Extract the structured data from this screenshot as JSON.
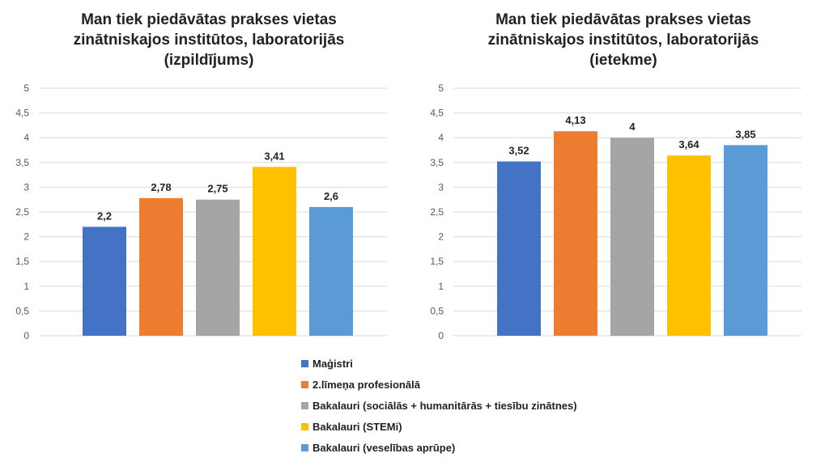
{
  "legend": [
    {
      "label": "Maģistri",
      "color": "#4472C4"
    },
    {
      "label": "2.līmeņa profesionālā",
      "color": "#ED7D31"
    },
    {
      "label": "Bakalauri (sociālās + humanitārās + tiesību zinātnes)",
      "color": "#A5A5A5"
    },
    {
      "label": "Bakalauri (STEMi)",
      "color": "#FFC000"
    },
    {
      "label": "Bakalauri (veselības aprūpe)",
      "color": "#5B9BD5"
    }
  ],
  "chart_data": [
    {
      "type": "bar",
      "title_lines": [
        "Man tiek piedāvātas prakses vietas",
        "zinātniskajos institūtos, laboratorijās",
        "(izpildījums)"
      ],
      "series": [
        {
          "name": "Maģistri",
          "value": 2.2,
          "label": "2,2"
        },
        {
          "name": "2.līmeņa profesionālā",
          "value": 2.78,
          "label": "2,78"
        },
        {
          "name": "Bakalauri (sociālās + humanitārās + tiesību zinātnes)",
          "value": 2.75,
          "label": "2,75"
        },
        {
          "name": "Bakalauri (STEMi)",
          "value": 3.41,
          "label": "3,41"
        },
        {
          "name": "Bakalauri (veselības aprūpe)",
          "value": 2.6,
          "label": "2,6"
        }
      ],
      "yticks": [
        "0",
        "0,5",
        "1",
        "1,5",
        "2",
        "2,5",
        "3",
        "3,5",
        "4",
        "4,5",
        "5"
      ],
      "ylim": [
        0,
        5
      ],
      "grid": true
    },
    {
      "type": "bar",
      "title_lines": [
        "Man tiek piedāvātas prakses vietas",
        "zinātniskajos institūtos, laboratorijās",
        "(ietekme)"
      ],
      "series": [
        {
          "name": "Maģistri",
          "value": 3.52,
          "label": "3,52"
        },
        {
          "name": "2.līmeņa profesionālā",
          "value": 4.13,
          "label": "4,13"
        },
        {
          "name": "Bakalauri (sociālās + humanitārās + tiesību zinātnes)",
          "value": 4,
          "label": "4"
        },
        {
          "name": "Bakalauri (STEMi)",
          "value": 3.64,
          "label": "3,64"
        },
        {
          "name": "Bakalauri (veselības aprūpe)",
          "value": 3.85,
          "label": "3,85"
        }
      ],
      "yticks": [
        "0",
        "0,5",
        "1",
        "1,5",
        "2",
        "2,5",
        "3",
        "3,5",
        "4",
        "4,5",
        "5"
      ],
      "ylim": [
        0,
        5
      ],
      "grid": true
    }
  ]
}
